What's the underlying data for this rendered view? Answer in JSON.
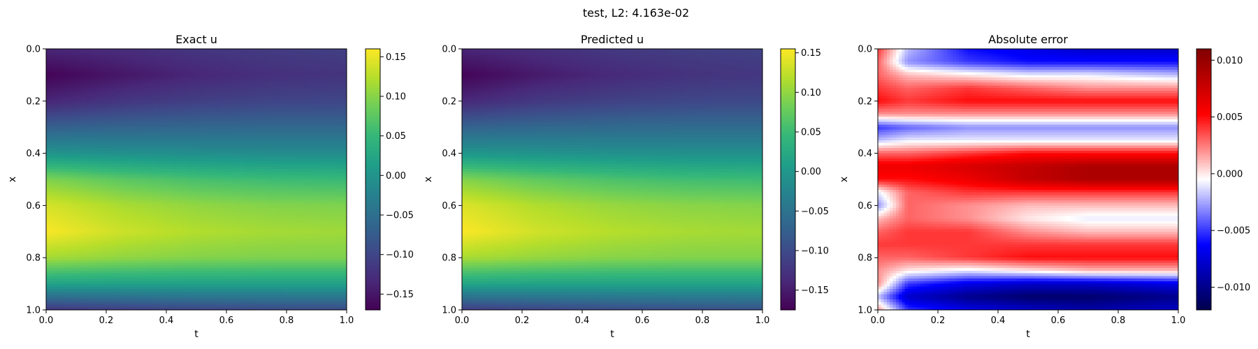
{
  "suptitle": "test, L2: 4.163e-02",
  "colormaps": {
    "viridis": "viridis",
    "seismic": "seismic"
  },
  "chart_data": [
    {
      "type": "heatmap",
      "title": "Exact u",
      "xlabel": "t",
      "ylabel": "x",
      "xlim": [
        0.0,
        1.0
      ],
      "ylim": [
        1.0,
        0.0
      ],
      "xticks": [
        "0.0",
        "0.2",
        "0.4",
        "0.6",
        "0.8",
        "1.0"
      ],
      "yticks": [
        "0.0",
        "0.2",
        "0.4",
        "0.6",
        "0.8",
        "1.0"
      ],
      "colormap": "viridis",
      "vlim": [
        -0.17,
        0.16
      ],
      "colorbar_ticks": [
        "0.15",
        "0.10",
        "0.05",
        "0.00",
        "−0.05",
        "−0.10",
        "−0.15"
      ],
      "colorbar_values": [
        0.15,
        0.1,
        0.05,
        0.0,
        -0.05,
        -0.1,
        -0.15
      ],
      "x_samples": [
        0.0,
        0.25,
        0.5,
        0.75,
        1.0
      ],
      "rows": [
        {
          "x": 0.0,
          "u": [
            -0.135,
            -0.128,
            -0.118,
            -0.112,
            -0.108
          ]
        },
        {
          "x": 0.1,
          "u": [
            -0.168,
            -0.15,
            -0.135,
            -0.125,
            -0.12
          ]
        },
        {
          "x": 0.2,
          "u": [
            -0.135,
            -0.118,
            -0.108,
            -0.102,
            -0.1
          ]
        },
        {
          "x": 0.3,
          "u": [
            -0.07,
            -0.065,
            -0.062,
            -0.06,
            -0.06
          ]
        },
        {
          "x": 0.4,
          "u": [
            0.0,
            -0.005,
            -0.008,
            -0.01,
            -0.01
          ]
        },
        {
          "x": 0.5,
          "u": [
            0.095,
            0.075,
            0.062,
            0.055,
            0.052
          ]
        },
        {
          "x": 0.6,
          "u": [
            0.14,
            0.118,
            0.105,
            0.098,
            0.095
          ]
        },
        {
          "x": 0.7,
          "u": [
            0.158,
            0.135,
            0.122,
            0.115,
            0.112
          ]
        },
        {
          "x": 0.8,
          "u": [
            0.115,
            0.105,
            0.098,
            0.095,
            0.095
          ]
        },
        {
          "x": 0.9,
          "u": [
            0.02,
            0.018,
            0.018,
            0.018,
            0.018
          ]
        },
        {
          "x": 1.0,
          "u": [
            -0.12,
            -0.11,
            -0.102,
            -0.098,
            -0.095
          ]
        }
      ]
    },
    {
      "type": "heatmap",
      "title": "Predicted u",
      "xlabel": "t",
      "ylabel": "x",
      "xlim": [
        0.0,
        1.0
      ],
      "ylim": [
        1.0,
        0.0
      ],
      "xticks": [
        "0.0",
        "0.2",
        "0.4",
        "0.6",
        "0.8",
        "1.0"
      ],
      "yticks": [
        "0.0",
        "0.2",
        "0.4",
        "0.6",
        "0.8",
        "1.0"
      ],
      "colormap": "viridis",
      "vlim": [
        -0.175,
        0.155
      ],
      "colorbar_ticks": [
        "0.15",
        "0.10",
        "0.05",
        "0.00",
        "−0.05",
        "−0.10",
        "−0.15"
      ],
      "colorbar_values": [
        0.15,
        0.1,
        0.05,
        0.0,
        -0.05,
        -0.1,
        -0.15
      ],
      "x_samples": [
        0.0,
        0.25,
        0.5,
        0.75,
        1.0
      ],
      "rows": [
        {
          "x": 0.0,
          "u": [
            -0.14,
            -0.13,
            -0.12,
            -0.114,
            -0.11
          ]
        },
        {
          "x": 0.1,
          "u": [
            -0.172,
            -0.152,
            -0.137,
            -0.127,
            -0.122
          ]
        },
        {
          "x": 0.2,
          "u": [
            -0.138,
            -0.12,
            -0.11,
            -0.104,
            -0.102
          ]
        },
        {
          "x": 0.3,
          "u": [
            -0.072,
            -0.066,
            -0.063,
            -0.061,
            -0.061
          ]
        },
        {
          "x": 0.4,
          "u": [
            -0.002,
            -0.006,
            -0.009,
            -0.011,
            -0.011
          ]
        },
        {
          "x": 0.5,
          "u": [
            0.092,
            0.073,
            0.06,
            0.053,
            0.05
          ]
        },
        {
          "x": 0.6,
          "u": [
            0.138,
            0.116,
            0.103,
            0.096,
            0.093
          ]
        },
        {
          "x": 0.7,
          "u": [
            0.154,
            0.132,
            0.119,
            0.112,
            0.109
          ]
        },
        {
          "x": 0.8,
          "u": [
            0.112,
            0.102,
            0.095,
            0.092,
            0.092
          ]
        },
        {
          "x": 0.9,
          "u": [
            0.018,
            0.016,
            0.016,
            0.016,
            0.016
          ]
        },
        {
          "x": 1.0,
          "u": [
            -0.118,
            -0.108,
            -0.1,
            -0.096,
            -0.093
          ]
        }
      ]
    },
    {
      "type": "heatmap",
      "title": "Absolute error",
      "xlabel": "t",
      "ylabel": "x",
      "xlim": [
        0.0,
        1.0
      ],
      "ylim": [
        1.0,
        0.0
      ],
      "xticks": [
        "0.0",
        "0.2",
        "0.4",
        "0.6",
        "0.8",
        "1.0"
      ],
      "yticks": [
        "0.0",
        "0.2",
        "0.4",
        "0.6",
        "0.8",
        "1.0"
      ],
      "colormap": "seismic",
      "vlim": [
        -0.012,
        0.011
      ],
      "colorbar_ticks": [
        "0.010",
        "0.005",
        "0.000",
        "−0.005",
        "−0.010"
      ],
      "colorbar_values": [
        0.01,
        0.005,
        0.0,
        -0.005,
        -0.01
      ],
      "x_samples": [
        0.0,
        0.1,
        0.3,
        0.5,
        0.7,
        1.0
      ],
      "rows": [
        {
          "x": 0.0,
          "u": [
            0.004,
            -0.002,
            -0.006,
            -0.007,
            -0.008,
            -0.008
          ]
        },
        {
          "x": 0.05,
          "u": [
            0.003,
            -0.003,
            -0.005,
            -0.006,
            -0.006,
            -0.006
          ]
        },
        {
          "x": 0.1,
          "u": [
            0.003,
            0.001,
            0.0,
            -0.001,
            -0.001,
            -0.002
          ]
        },
        {
          "x": 0.15,
          "u": [
            0.004,
            0.003,
            0.004,
            0.003,
            0.002,
            0.002
          ]
        },
        {
          "x": 0.2,
          "u": [
            0.005,
            0.004,
            0.005,
            0.005,
            0.005,
            0.005
          ]
        },
        {
          "x": 0.25,
          "u": [
            0.002,
            0.002,
            0.002,
            0.002,
            0.002,
            0.002
          ]
        },
        {
          "x": 0.3,
          "u": [
            -0.005,
            -0.004,
            -0.003,
            -0.003,
            -0.003,
            -0.003
          ]
        },
        {
          "x": 0.35,
          "u": [
            -0.002,
            -0.001,
            -0.001,
            -0.001,
            -0.001,
            -0.001
          ]
        },
        {
          "x": 0.4,
          "u": [
            0.003,
            0.003,
            0.004,
            0.005,
            0.005,
            0.005
          ]
        },
        {
          "x": 0.45,
          "u": [
            0.006,
            0.006,
            0.007,
            0.008,
            0.009,
            0.009
          ]
        },
        {
          "x": 0.5,
          "u": [
            0.005,
            0.005,
            0.006,
            0.008,
            0.009,
            0.009
          ]
        },
        {
          "x": 0.55,
          "u": [
            -0.001,
            0.003,
            0.004,
            0.004,
            0.004,
            0.004
          ]
        },
        {
          "x": 0.6,
          "u": [
            -0.003,
            0.003,
            0.002,
            0.001,
            0.001,
            0.001
          ]
        },
        {
          "x": 0.65,
          "u": [
            0.001,
            0.003,
            0.002,
            0.0,
            -0.001,
            -0.001
          ]
        },
        {
          "x": 0.7,
          "u": [
            0.003,
            0.004,
            0.004,
            0.002,
            0.001,
            0.001
          ]
        },
        {
          "x": 0.75,
          "u": [
            0.004,
            0.004,
            0.004,
            0.004,
            0.004,
            0.004
          ]
        },
        {
          "x": 0.8,
          "u": [
            0.003,
            0.003,
            0.004,
            0.005,
            0.005,
            0.005
          ]
        },
        {
          "x": 0.85,
          "u": [
            0.002,
            0.0,
            -0.001,
            0.0,
            0.001,
            0.001
          ]
        },
        {
          "x": 0.9,
          "u": [
            0.002,
            -0.005,
            -0.007,
            -0.008,
            -0.008,
            -0.007
          ]
        },
        {
          "x": 0.95,
          "u": [
            -0.002,
            -0.008,
            -0.01,
            -0.011,
            -0.011,
            -0.01
          ]
        },
        {
          "x": 1.0,
          "u": [
            0.002,
            -0.005,
            -0.007,
            -0.008,
            -0.009,
            -0.008
          ]
        }
      ]
    }
  ]
}
